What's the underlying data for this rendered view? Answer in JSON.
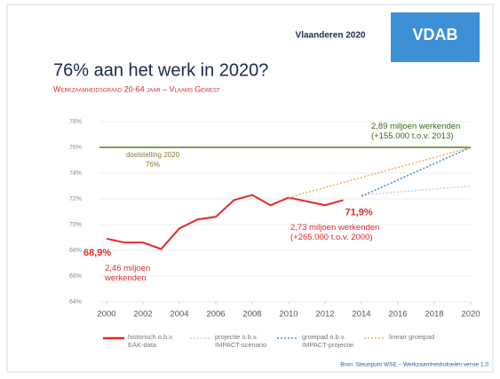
{
  "header": {
    "region": "Vlaanderen 2020",
    "logo": "VDAB"
  },
  "chart_data": {
    "type": "line",
    "title": "76% aan het werk in 2020?",
    "subtitle": "Werkzaamheidsgraad 20-64 jaar – Vlaams Gewest",
    "xlim": [
      2000,
      2020
    ],
    "xticks": [
      2000,
      2002,
      2004,
      2006,
      2008,
      2010,
      2012,
      2014,
      2016,
      2018,
      2020
    ],
    "ylim": [
      64,
      78
    ],
    "yticks": [
      {
        "value": 64,
        "label": "64%"
      },
      {
        "value": 66,
        "label": "66%"
      },
      {
        "value": 68,
        "label": "68%"
      },
      {
        "value": 70,
        "label": "70%"
      },
      {
        "value": 72,
        "label": "72%"
      },
      {
        "value": 74,
        "label": "74%"
      },
      {
        "value": 76,
        "label": "76%"
      },
      {
        "value": 78,
        "label": "78%"
      }
    ],
    "target": {
      "label": "doelstelling 2020",
      "value": 76,
      "value_label": "76%",
      "color": "#5a7a1e"
    },
    "series": [
      {
        "name": "historisch o.b.v. EAK-data",
        "color": "#e02a2a",
        "dash": "solid",
        "x": [
          2000,
          2001,
          2002,
          2003,
          2004,
          2005,
          2006,
          2007,
          2008,
          2009,
          2010,
          2011,
          2012,
          2013
        ],
        "values": [
          68.9,
          68.6,
          68.6,
          68.1,
          69.7,
          70.4,
          70.6,
          71.9,
          72.3,
          71.5,
          72.1,
          71.8,
          71.5,
          71.9
        ],
        "value_labels": [
          "68,9%",
          null,
          null,
          null,
          null,
          null,
          null,
          null,
          null,
          null,
          null,
          null,
          null,
          "71,9%"
        ]
      },
      {
        "name": "projectie o.b.v. IMPACT-scenario",
        "color": "#c9d3df",
        "dash": "dotted",
        "x": [
          2014,
          2020
        ],
        "values": [
          72.3,
          73.0
        ]
      },
      {
        "name": "groeipad o.b.v. IMPACT-projectie",
        "color": "#4a8fc8",
        "dash": "dotted",
        "x": [
          2014,
          2020
        ],
        "values": [
          72.2,
          76
        ]
      },
      {
        "name": "lineair groeipad",
        "color": "#f0b35a",
        "dash": "dotted",
        "x": [
          2010,
          2020
        ],
        "values": [
          72.1,
          76
        ]
      }
    ],
    "annotations": [
      "2,89 miljoen werkenden (+155.000 t.o.v. 2013)",
      "2,73 miljoen werkenden (+265.000 t.o.v. 2000)",
      "2,46 miljoen werkenden"
    ],
    "source": "Bron: Steunpunt WSE – Werkzaamheidsdoelen versie 1.0"
  }
}
